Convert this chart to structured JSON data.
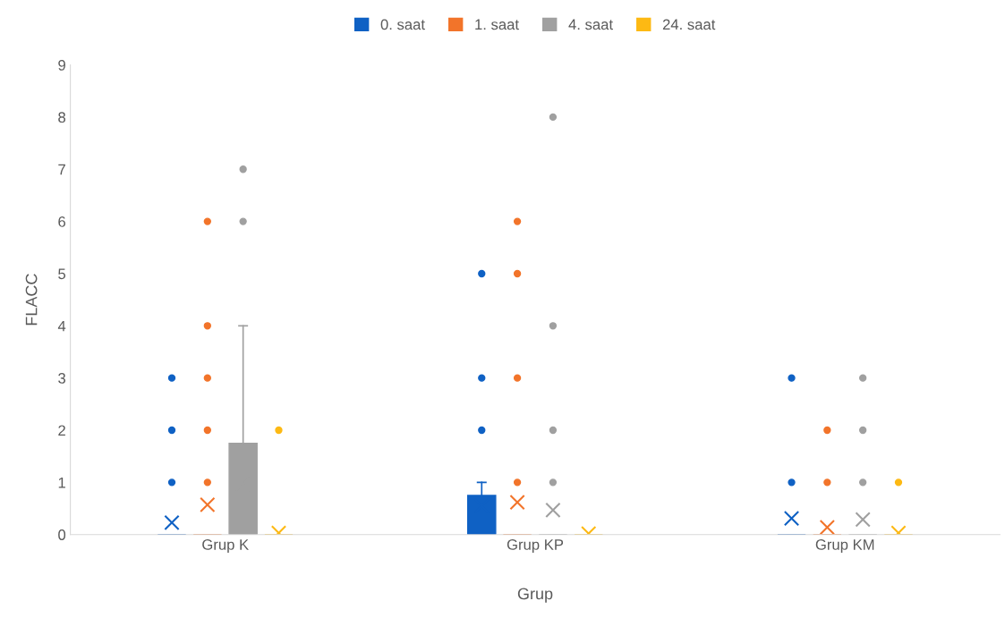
{
  "chart_data": {
    "type": "box",
    "xlabel": "Grup",
    "ylabel": "FLACC",
    "categories": [
      "Grup K",
      "Grup KP",
      "Grup KM"
    ],
    "ylim": [
      0,
      9
    ],
    "yticks": [
      0,
      1,
      2,
      3,
      4,
      5,
      6,
      7,
      8,
      9
    ],
    "grid": false,
    "legend": "top",
    "series": [
      {
        "name": "0. saat",
        "color": "#0f61c4",
        "boxes": [
          {
            "low": 0,
            "q1": 0,
            "median": 0,
            "q3": 0,
            "high": 0,
            "mean": 0.23,
            "outliers": [
              1,
              2,
              3
            ]
          },
          {
            "low": 0,
            "q1": 0,
            "median": 0,
            "q3": 0.75,
            "high": 1,
            "mean": 0.55,
            "outliers": [
              2,
              3,
              5
            ]
          },
          {
            "low": 0,
            "q1": 0,
            "median": 0,
            "q3": 0,
            "high": 0,
            "mean": 0.31,
            "outliers": [
              1,
              3
            ]
          }
        ]
      },
      {
        "name": "1. saat",
        "color": "#f2742a",
        "boxes": [
          {
            "low": 0,
            "q1": 0,
            "median": 0,
            "q3": 0,
            "high": 0,
            "mean": 0.57,
            "outliers": [
              1,
              2,
              3,
              4,
              6
            ]
          },
          {
            "low": 0,
            "q1": 0,
            "median": 0,
            "q3": 0,
            "high": 0,
            "mean": 0.62,
            "outliers": [
              1,
              3,
              5,
              6
            ]
          },
          {
            "low": 0,
            "q1": 0,
            "median": 0,
            "q3": 0,
            "high": 0,
            "mean": 0.14,
            "outliers": [
              1,
              2
            ]
          }
        ]
      },
      {
        "name": "4. saat",
        "color": "#a0a0a0",
        "boxes": [
          {
            "low": 0,
            "q1": 0,
            "median": 0,
            "q3": 1.75,
            "high": 4,
            "mean": 0.97,
            "outliers": [
              6,
              7
            ]
          },
          {
            "low": 0,
            "q1": 0,
            "median": 0,
            "q3": 0,
            "high": 0,
            "mean": 0.47,
            "outliers": [
              1,
              2,
              4,
              8
            ]
          },
          {
            "low": 0,
            "q1": 0,
            "median": 0,
            "q3": 0,
            "high": 0,
            "mean": 0.29,
            "outliers": [
              1,
              2,
              3
            ]
          }
        ]
      },
      {
        "name": "24. saat",
        "color": "#fdb913",
        "boxes": [
          {
            "low": 0,
            "q1": 0,
            "median": 0,
            "q3": 0,
            "high": 0,
            "mean": 0.03,
            "outliers": [
              2
            ]
          },
          {
            "low": 0,
            "q1": 0,
            "median": 0,
            "q3": 0,
            "high": 0,
            "mean": 0.02
          },
          {
            "low": 0,
            "q1": 0,
            "median": 0,
            "q3": 0,
            "high": 0,
            "mean": 0.03,
            "outliers": [
              1
            ]
          }
        ]
      }
    ]
  }
}
